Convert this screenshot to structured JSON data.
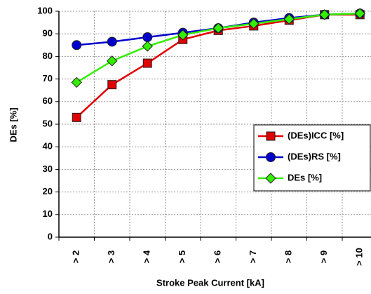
{
  "chart_data": {
    "type": "line",
    "x_label": "Stroke Peak Current [kA]",
    "y_label": "DEs [%]",
    "categories": [
      "> 2",
      "> 3",
      "> 4",
      "> 5",
      "> 6",
      "> 7",
      "> 8",
      "> 9",
      "> 10"
    ],
    "series": [
      {
        "name": "(DEs)ICC [%]",
        "color": "#e00000",
        "marker": "square",
        "values": [
          53,
          67.5,
          77,
          87.5,
          91.5,
          93.5,
          96,
          98.5,
          98.5
        ]
      },
      {
        "name": "(DEs)RS [%]",
        "color": "#0000cc",
        "marker": "circle",
        "values": [
          85,
          86.5,
          88.5,
          90.5,
          92.5,
          95,
          97,
          98.5,
          99
        ]
      },
      {
        "name": "DEs [%]",
        "color": "#33ee00",
        "marker": "diamond",
        "values": [
          68.5,
          78,
          84.5,
          89.5,
          92.5,
          94.5,
          96.5,
          98.5,
          99
        ]
      }
    ],
    "ylim": [
      0,
      100
    ],
    "yticks": [
      0,
      10,
      20,
      30,
      40,
      50,
      60,
      70,
      80,
      90,
      100
    ],
    "grid": true,
    "legend": "right"
  }
}
